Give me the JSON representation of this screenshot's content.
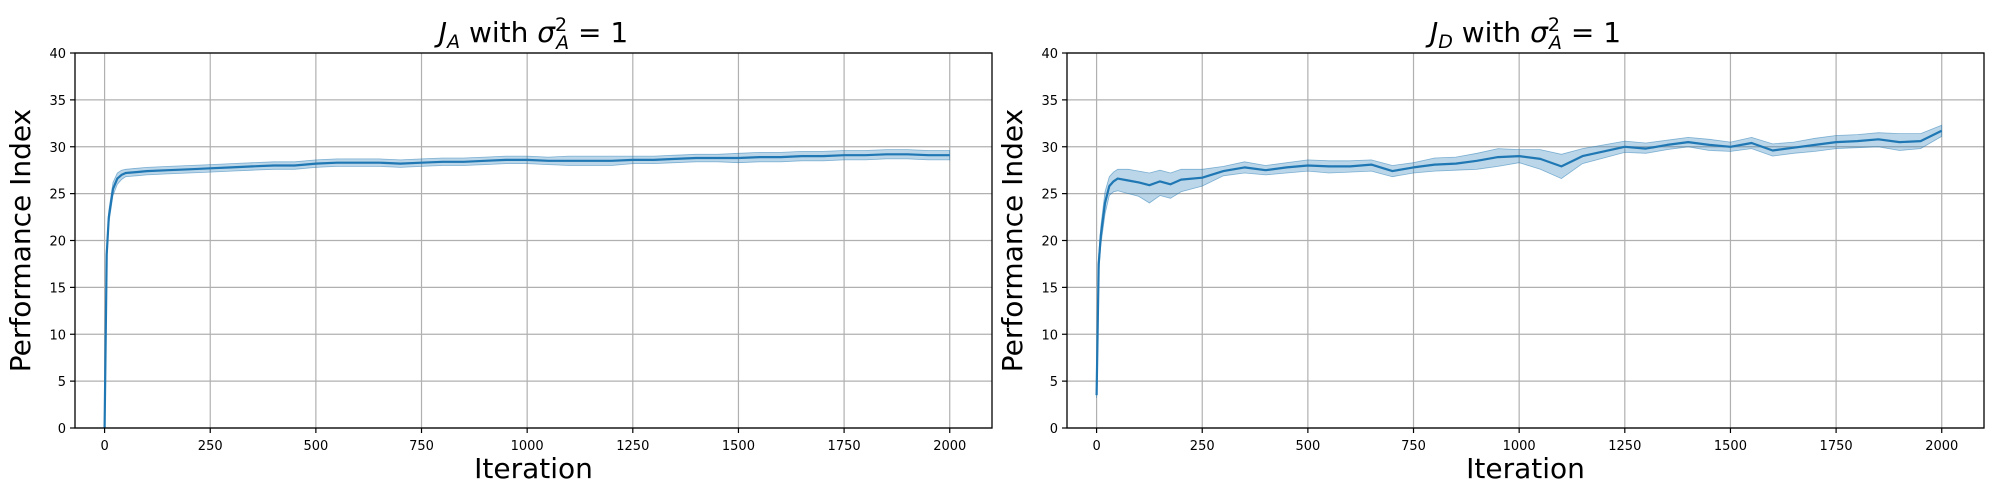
{
  "chart_data": [
    {
      "type": "line",
      "title": "J_A with σ_A^2 = 1",
      "title_parts": {
        "main": "J",
        "main_sub": "A",
        "mid": " with ",
        "sym": "σ",
        "sym_sup": "2",
        "sym_sub": "A",
        "tail": " =  1"
      },
      "xlabel": "Iteration",
      "ylabel": "Performance Index",
      "xlim": [
        -70,
        2100
      ],
      "ylim": [
        0,
        40
      ],
      "xticks": [
        0,
        250,
        500,
        750,
        1000,
        1250,
        1500,
        1750,
        2000
      ],
      "yticks": [
        0,
        5,
        10,
        15,
        20,
        25,
        30,
        35,
        40
      ],
      "grid": true,
      "line_color": "#1f77b4",
      "band_color": "#1f77b4",
      "series": [
        {
          "x": [
            0,
            5,
            10,
            20,
            30,
            40,
            50,
            75,
            100,
            150,
            200,
            250,
            300,
            350,
            400,
            450,
            500,
            550,
            600,
            650,
            700,
            750,
            800,
            850,
            900,
            950,
            1000,
            1050,
            1100,
            1150,
            1200,
            1250,
            1300,
            1350,
            1400,
            1450,
            1500,
            1550,
            1600,
            1650,
            1700,
            1750,
            1800,
            1850,
            1900,
            1950,
            2000
          ],
          "y": [
            0,
            18.5,
            22.5,
            25.5,
            26.6,
            27.0,
            27.2,
            27.3,
            27.4,
            27.5,
            27.6,
            27.7,
            27.8,
            27.9,
            28.0,
            28.0,
            28.2,
            28.3,
            28.3,
            28.3,
            28.2,
            28.3,
            28.4,
            28.4,
            28.5,
            28.6,
            28.6,
            28.5,
            28.5,
            28.5,
            28.5,
            28.6,
            28.6,
            28.7,
            28.8,
            28.8,
            28.8,
            28.9,
            28.9,
            29.0,
            29.0,
            29.1,
            29.1,
            29.2,
            29.2,
            29.1,
            29.1
          ],
          "y_lower": [
            0,
            17.8,
            21.8,
            24.8,
            26.0,
            26.5,
            26.8,
            26.9,
            27.0,
            27.1,
            27.2,
            27.3,
            27.4,
            27.5,
            27.6,
            27.6,
            27.8,
            27.9,
            27.9,
            27.9,
            27.8,
            27.9,
            28.0,
            28.0,
            28.1,
            28.2,
            28.2,
            28.1,
            28.0,
            28.0,
            28.0,
            28.2,
            28.2,
            28.3,
            28.4,
            28.4,
            28.3,
            28.4,
            28.4,
            28.5,
            28.5,
            28.6,
            28.6,
            28.7,
            28.7,
            28.6,
            28.6
          ],
          "y_upper": [
            0,
            19.2,
            23.2,
            26.2,
            27.2,
            27.5,
            27.6,
            27.7,
            27.8,
            27.9,
            28.0,
            28.1,
            28.2,
            28.3,
            28.4,
            28.4,
            28.6,
            28.7,
            28.7,
            28.7,
            28.6,
            28.7,
            28.8,
            28.8,
            28.9,
            29.0,
            29.0,
            28.9,
            29.0,
            29.0,
            29.0,
            29.0,
            29.0,
            29.1,
            29.2,
            29.2,
            29.3,
            29.4,
            29.4,
            29.5,
            29.5,
            29.6,
            29.6,
            29.7,
            29.7,
            29.6,
            29.6
          ]
        }
      ]
    },
    {
      "type": "line",
      "title": "J_D with σ_A^2 = 1",
      "title_parts": {
        "main": "J",
        "main_sub": "D",
        "mid": " with ",
        "sym": "σ",
        "sym_sup": "2",
        "sym_sub": "A",
        "tail": " =  1"
      },
      "xlabel": "Iteration",
      "ylabel": "Performance Index",
      "xlim": [
        -70,
        2100
      ],
      "ylim": [
        0,
        40
      ],
      "xticks": [
        0,
        250,
        500,
        750,
        1000,
        1250,
        1500,
        1750,
        2000
      ],
      "yticks": [
        0,
        5,
        10,
        15,
        20,
        25,
        30,
        35,
        40
      ],
      "grid": true,
      "line_color": "#1f77b4",
      "band_color": "#1f77b4",
      "series": [
        {
          "x": [
            0,
            5,
            10,
            20,
            30,
            40,
            50,
            75,
            100,
            125,
            150,
            175,
            200,
            250,
            300,
            350,
            400,
            450,
            500,
            550,
            600,
            650,
            700,
            750,
            800,
            850,
            900,
            950,
            1000,
            1050,
            1100,
            1150,
            1200,
            1250,
            1300,
            1350,
            1400,
            1450,
            1500,
            1550,
            1600,
            1650,
            1700,
            1750,
            1800,
            1850,
            1900,
            1950,
            2000
          ],
          "y": [
            3.5,
            17.5,
            20.5,
            24.0,
            25.8,
            26.3,
            26.6,
            26.4,
            26.2,
            25.9,
            26.3,
            26.0,
            26.5,
            26.7,
            27.4,
            27.8,
            27.5,
            27.8,
            28.0,
            27.9,
            27.9,
            28.1,
            27.4,
            27.8,
            28.1,
            28.2,
            28.5,
            28.9,
            29.0,
            28.7,
            27.9,
            29.0,
            29.5,
            30.0,
            29.8,
            30.2,
            30.5,
            30.2,
            30.0,
            30.4,
            29.6,
            29.9,
            30.2,
            30.5,
            30.6,
            30.8,
            30.5,
            30.6,
            31.7
          ],
          "y_lower": [
            3.2,
            16.5,
            19.5,
            22.8,
            24.8,
            25.2,
            25.3,
            25.0,
            24.7,
            24.0,
            24.8,
            24.5,
            25.2,
            25.8,
            26.9,
            27.2,
            27.0,
            27.2,
            27.4,
            27.2,
            27.3,
            27.4,
            26.8,
            27.2,
            27.4,
            27.5,
            27.6,
            27.9,
            28.3,
            27.6,
            26.6,
            28.2,
            28.8,
            29.4,
            29.3,
            29.7,
            30.0,
            29.6,
            29.5,
            29.8,
            29.0,
            29.3,
            29.5,
            29.8,
            29.9,
            30.0,
            29.6,
            29.8,
            31.1
          ],
          "y_upper": [
            3.8,
            18.5,
            21.5,
            25.2,
            26.8,
            27.3,
            27.6,
            27.6,
            27.4,
            27.2,
            27.5,
            27.2,
            27.6,
            27.6,
            27.9,
            28.4,
            28.0,
            28.3,
            28.6,
            28.5,
            28.5,
            28.6,
            28.0,
            28.3,
            28.8,
            28.9,
            29.3,
            29.8,
            29.7,
            29.7,
            29.2,
            29.8,
            30.2,
            30.6,
            30.4,
            30.7,
            31.0,
            30.8,
            30.5,
            31.0,
            30.3,
            30.5,
            30.9,
            31.2,
            31.3,
            31.5,
            31.4,
            31.4,
            32.3
          ]
        }
      ]
    }
  ]
}
